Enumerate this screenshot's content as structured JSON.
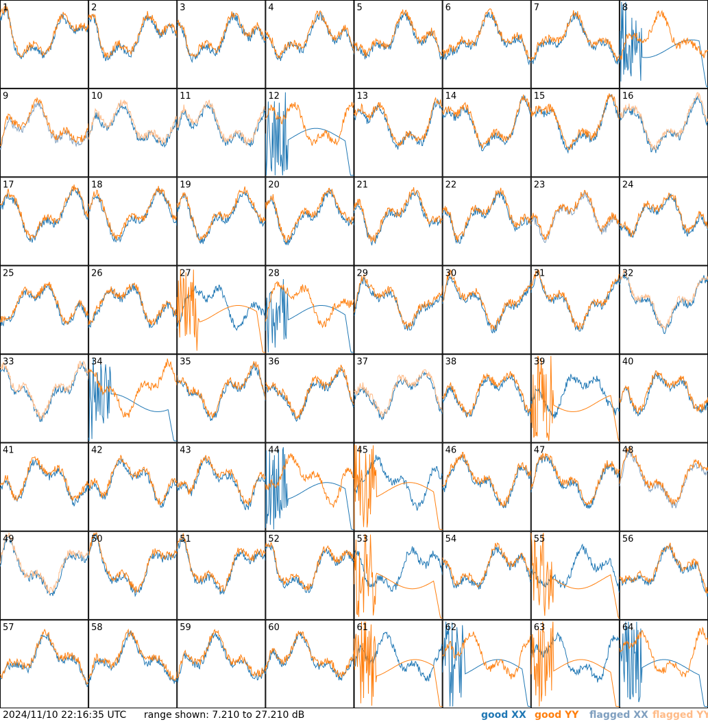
{
  "chart_data": {
    "type": "line",
    "grid": {
      "rows": 8,
      "cols": 8
    },
    "panel_labels": [
      "1",
      "2",
      "3",
      "4",
      "5",
      "6",
      "7",
      "8",
      "9",
      "10",
      "11",
      "12",
      "13",
      "14",
      "15",
      "16",
      "17",
      "18",
      "19",
      "20",
      "21",
      "22",
      "23",
      "24",
      "25",
      "26",
      "27",
      "28",
      "29",
      "30",
      "31",
      "32",
      "33",
      "34",
      "35",
      "36",
      "37",
      "38",
      "39",
      "40",
      "41",
      "42",
      "43",
      "44",
      "45",
      "46",
      "47",
      "48",
      "49",
      "50",
      "51",
      "52",
      "53",
      "54",
      "55",
      "56",
      "57",
      "58",
      "59",
      "60",
      "61",
      "62",
      "63",
      "64"
    ],
    "ylim": [
      7.21,
      27.21
    ],
    "y_unit": "dB",
    "series": [
      {
        "name": "good XX",
        "color": "#1f77b4"
      },
      {
        "name": "good YY",
        "color": "#ff7f0e"
      },
      {
        "name": "flagged XX",
        "color": "#7f9fbf"
      },
      {
        "name": "flagged YY",
        "color": "#ffbb88"
      }
    ],
    "flagged_xx_panels": [
      9,
      23,
      48
    ],
    "flagged_yy_panels": [
      10,
      11,
      16,
      32,
      33,
      37,
      49
    ]
  },
  "footer": {
    "timestamp": "2024/11/10 22:16:35 UTC",
    "range": "range shown: 7.210 to 27.210 dB"
  },
  "legend": {
    "good_xx": "good XX",
    "good_yy": "good YY",
    "flagged_xx": "flagged XX",
    "flagged_yy": "flagged YY"
  }
}
